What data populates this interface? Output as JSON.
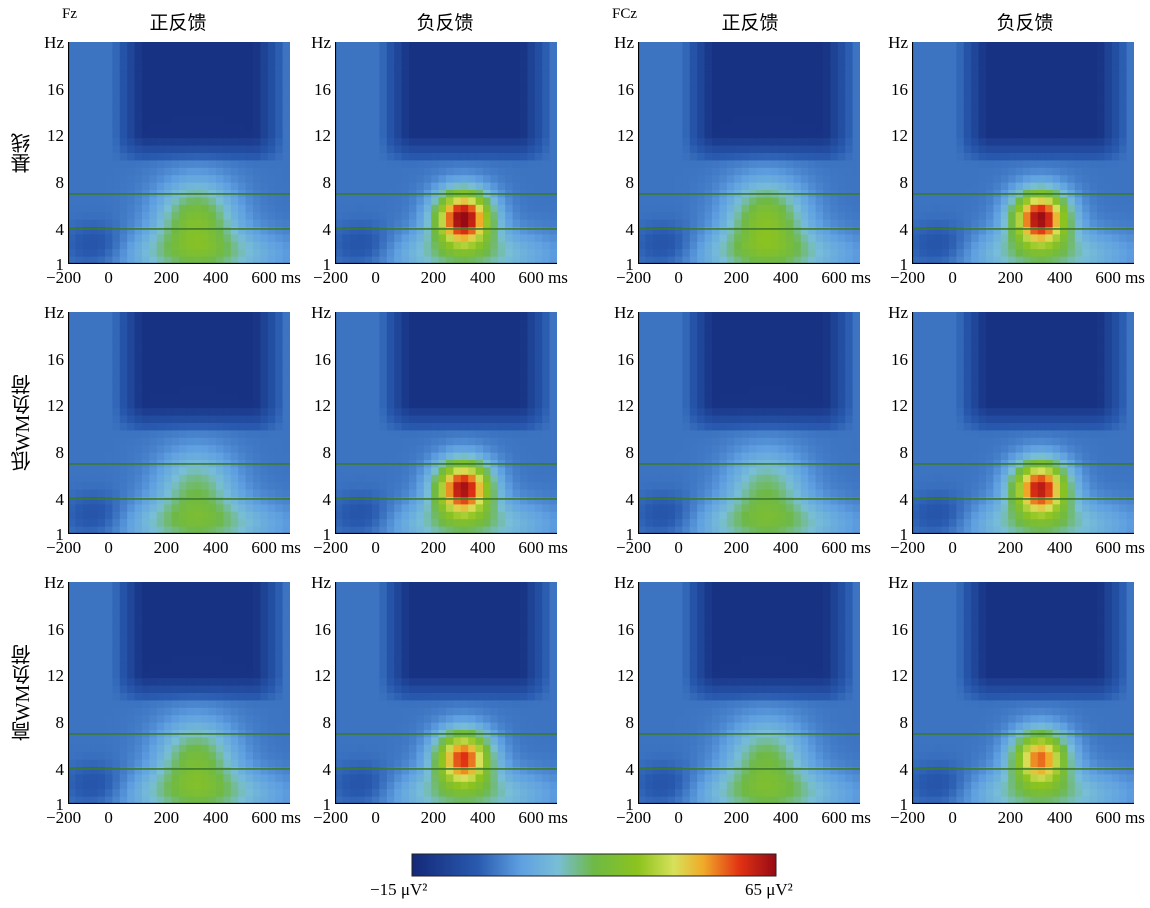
{
  "columns": [
    "正反馈",
    "负反馈",
    "正反馈",
    "负反馈"
  ],
  "electrodes": [
    "Fz",
    "FCz"
  ],
  "rows": [
    "基线",
    "低WM负荷",
    "高WM负荷"
  ],
  "y_ticks": [
    "Hz",
    "16",
    "12",
    "8",
    "4",
    "1"
  ],
  "x_ticks": [
    "−200",
    "0",
    "200",
    "400",
    "600 ms"
  ],
  "colorbar": {
    "min_label": "−15 μV²",
    "max_label": "65 μV²",
    "min": -15,
    "max": 65
  },
  "chart_data": {
    "type": "heatmap",
    "description_units": {
      "x": "ms",
      "y": "Hz",
      "value": "μV²"
    },
    "x_range": [
      -200,
      700
    ],
    "y_range": [
      1,
      20
    ],
    "reference_lines_hz": [
      4,
      7
    ],
    "panels": [
      {
        "electrode": "Fz",
        "condition": "基线",
        "feedback": "正反馈",
        "theta_peak": 28
      },
      {
        "electrode": "Fz",
        "condition": "基线",
        "feedback": "负反馈",
        "theta_peak": 65
      },
      {
        "electrode": "FCz",
        "condition": "基线",
        "feedback": "正反馈",
        "theta_peak": 30
      },
      {
        "electrode": "FCz",
        "condition": "基线",
        "feedback": "负反馈",
        "theta_peak": 63
      },
      {
        "electrode": "Fz",
        "condition": "低WM负荷",
        "feedback": "正反馈",
        "theta_peak": 22
      },
      {
        "electrode": "Fz",
        "condition": "低WM负荷",
        "feedback": "负反馈",
        "theta_peak": 62
      },
      {
        "electrode": "FCz",
        "condition": "低WM负荷",
        "feedback": "正反馈",
        "theta_peak": 22
      },
      {
        "electrode": "FCz",
        "condition": "低WM负荷",
        "feedback": "负反馈",
        "theta_peak": 60
      },
      {
        "electrode": "Fz",
        "condition": "高WM负荷",
        "feedback": "正反馈",
        "theta_peak": 26
      },
      {
        "electrode": "Fz",
        "condition": "高WM负荷",
        "feedback": "负反馈",
        "theta_peak": 56
      },
      {
        "electrode": "FCz",
        "condition": "高WM负荷",
        "feedback": "正反馈",
        "theta_peak": 24
      },
      {
        "electrode": "FCz",
        "condition": "高WM负荷",
        "feedback": "负反馈",
        "theta_peak": 52
      }
    ]
  }
}
